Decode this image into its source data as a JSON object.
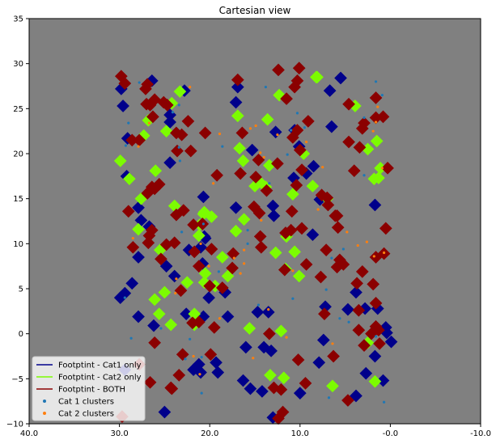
{
  "chart_data": {
    "type": "scatter",
    "title": "Cartesian view",
    "xlabel": "",
    "ylabel": "",
    "xlim": [
      40.0,
      -10.0
    ],
    "ylim": [
      -10,
      35
    ],
    "x_ticks": [
      40.0,
      30.0,
      20.0,
      10.0,
      -0.0,
      -10.0
    ],
    "x_tick_labels": [
      "40.0",
      "30.0",
      "20.0",
      "10.0",
      "-0.0",
      "-10.0"
    ],
    "y_ticks": [
      -10,
      -5,
      0,
      5,
      10,
      15,
      20,
      25,
      30,
      35
    ],
    "y_tick_labels": [
      "−10",
      "−5",
      "0",
      "5",
      "10",
      "15",
      "20",
      "25",
      "30",
      "35"
    ],
    "grid": false,
    "background_color": "#808080",
    "legend_placement": "lower-left",
    "legend": [
      {
        "label": "Footptint - Cat1 only",
        "kind": "line",
        "color": "#00008b"
      },
      {
        "label": "Footptint - Cat2 only",
        "kind": "line",
        "color": "#7cfc00"
      },
      {
        "label": "Footptint - BOTH",
        "kind": "line",
        "color": "#8b0000"
      },
      {
        "label": "Cat 1 clusters",
        "kind": "point",
        "color": "#1f77b4"
      },
      {
        "label": "Cat 2 clusters",
        "kind": "point",
        "color": "#ff7f0e"
      }
    ],
    "series": [
      {
        "name": "Footptint - Cat1 only",
        "color": "#00008b",
        "x": [
          29.2,
          20.8,
          27.9,
          22.6,
          29.8,
          14.0,
          2.8,
          13.0,
          7.9,
          24.4,
          18.3,
          26.7,
          13.5,
          26.4,
          29.4,
          10.1,
          20.7,
          1.7,
          7.4,
          8.6,
          5.5,
          7.8,
          12.7,
          24.4,
          13.2,
          15.5,
          12.9,
          20.7,
          1.4,
          -0.1,
          21.2,
          19.1,
          9.3,
          0.8,
          27.9,
          29.9,
          21.0,
          27.9,
          26.2,
          19.3,
          10.0,
          14.7,
          29.4,
          21.8,
          27.6,
          3.8,
          25.0,
          15.3,
          10.6,
          28.6,
          14.2,
          23.9,
          21.0,
          16.9,
          10.7,
          13.0,
          4.7,
          22.3,
          8.5,
          22.8,
          20.1,
          29.1,
          7.2,
          18.0,
          24.8,
          16.3,
          0.5,
          1.7,
          6.7,
          17.1,
          20.6,
          29.6,
          16.0,
          17.1,
          6.5,
          20.5,
          3.8,
          2.7,
          0.4,
          24.4
        ],
        "y": [
          17.5,
          7.8,
          14.0,
          2.2,
          27.2,
          -1.5,
          2.8,
          -9.3,
          -3.2,
          19.0,
          4.6,
          11.9,
          2.4,
          28.1,
          4.5,
          20.8,
          15.2,
          -2.5,
          -0.7,
          11.0,
          28.4,
          14.9,
          22.4,
          23.5,
          -1.9,
          -6.1,
          13.1,
          1.9,
          2.8,
          -0.9,
          -3.4,
          -4.3,
          17.8,
          -5.2,
          8.5,
          4.0,
          -4.3,
          1.9,
          0.9,
          -3.2,
          -6.6,
          2.4,
          -4.0,
          -4.0,
          12.6,
          -6.9,
          -8.7,
          20.4,
          22.6,
          5.6,
          -6.4,
          6.4,
          9.6,
          27.4,
          17.3,
          14.2,
          2.7,
          9.3,
          18.6,
          27.0,
          4.0,
          21.7,
          3.0,
          1.9,
          7.5,
          -5.2,
          0.7,
          14.3,
          27.0,
          25.7,
          10.8,
          25.3,
          -1.5,
          14.0,
          23.0,
          10.6,
          4.6,
          -4.4,
          0.1,
          24.3
        ]
      },
      {
        "name": "Footptint - Cat2 only",
        "color": "#7cfc00",
        "x": [
          27.9,
          12.1,
          1.8,
          1.3,
          28.9,
          8.1,
          21.7,
          2.5,
          21.1,
          13.4,
          15.0,
          20.6,
          17.1,
          10.8,
          16.7,
          11.5,
          14.5,
          29.9,
          12.3,
          19.4,
          20.7,
          9.6,
          23.3,
          27.6,
          24.8,
          13.8,
          1.1,
          19.8,
          8.2,
          12.7,
          24.2,
          25.0,
          15.6,
          18.6,
          13.6,
          10.1,
          3.9,
          25.5,
          26.8,
          21.7,
          11.8,
          16.9,
          23.9,
          6.4,
          1.5,
          7.0,
          16.3,
          22.5,
          10.6,
          26.0,
          1.7,
          11.6,
          13.3,
          24.3,
          8.6,
          18.0,
          25.6,
          27.3,
          21.2,
          20.6,
          20.5,
          26.1,
          2.5,
          16.2
        ],
        "y": [
          11.6,
          0.3,
          17.2,
          17.3,
          17.2,
          28.5,
          1.0,
          20.5,
          12.1,
          18.7,
          16.4,
          13.5,
          11.4,
          15.5,
          20.6,
          10.8,
          16.9,
          19.2,
          26.5,
          5.3,
          13.3,
          20.0,
          26.9,
          15.0,
          22.5,
          16.3,
          18.4,
          13.0,
          28.5,
          9.0,
          25.6,
          4.6,
          0.6,
          8.5,
          23.8,
          6.4,
          25.3,
          9.3,
          23.7,
          2.2,
          -4.9,
          24.2,
          14.2,
          -5.8,
          21.4,
          15.0,
          19.2,
          5.7,
          9.1,
          18.1,
          -5.3,
          7.2,
          -4.6,
          1.0,
          16.4,
          6.4,
          2.2,
          22.0,
          10.9,
          5.7,
          6.7,
          3.8,
          -1.0,
          12.7
        ]
      },
      {
        "name": "Footptint - BOTH",
        "color": "#8b0000",
        "x": [
          26.1,
          2.9,
          21.7,
          28.6,
          4.6,
          10.4,
          26.1,
          4.0,
          22.4,
          6.3,
          13.7,
          23.1,
          23.4,
          9.8,
          26.4,
          16.9,
          10.8,
          15.1,
          11.5,
          28.5,
          1.6,
          21.8,
          22.9,
          10.9,
          9.3,
          25.4,
          5.9,
          12.4,
          14.5,
          23.6,
          17.5,
          0.5,
          1.6,
          6.9,
          25.6,
          7.0,
          26.1,
          26.3,
          4.7,
          27.8,
          24.7,
          1.9,
          20.8,
          19.5,
          9.8,
          7.3,
          19.2,
          14.9,
          11.0,
          1.6,
          12.9,
          5.9,
          5.6,
          12.4,
          26.4,
          12.1,
          14.3,
          0.8,
          14.4,
          20.5,
          11.9,
          26.6,
          4.6,
          7.7,
          13.4,
          7.6,
          22.1,
          0.3,
          29.7,
          23.2,
          26.9,
          23.9,
          10.0,
          27.0,
          3.1,
          1.2,
          7.1,
          29.0,
          29.4,
          10.2,
          9.1,
          21.2,
          2.1,
          17.4,
          26.6,
          5.8,
          2.9,
          11.7,
          1.6,
          26.9,
          19.9,
          24.8,
          10.3,
          21.2,
          12.5,
          9.4,
          1.6,
          3.1,
          23.0,
          10.6,
          21.9,
          11.6,
          23.7,
          27.8,
          14.6,
          24.3,
          25.1,
          19.8,
          3.5,
          10.3,
          3.7,
          6.1,
          0.7,
          26.7,
          26.8,
          18.6,
          29.8,
          3.4,
          1.3,
          24.2,
          16.4,
          5.2,
          23.7,
          16.6,
          10.1,
          3.5,
          27.1,
          20.0
        ],
        "y": [
          26.0,
          -1.3,
          9.1,
          21.5,
          21.3,
          16.5,
          -1.0,
          18.1,
          23.6,
          -2.5,
          15.9,
          22.1,
          -4.6,
          18.2,
          16.3,
          28.2,
          21.8,
          14.1,
          26.1,
          9.6,
          3.4,
          12.1,
          13.7,
          13.6,
          7.7,
          8.3,
          7.4,
          -9.4,
          13.4,
          20.3,
          7.3,
          11.7,
          0.8,
          14.3,
          16.6,
          15.1,
          16.1,
          24.1,
          -7.4,
          21.5,
          25.4,
          5.5,
          12.2,
          0.7,
          11.7,
          2.2,
          17.6,
          17.4,
          11.5,
          8.5,
          -6.0,
          13.1,
          8.2,
          29.3,
          11.5,
          -6.2,
          9.6,
          24.1,
          10.8,
          22.3,
          -8.7,
          25.4,
          25.5,
          6.3,
          -0.0,
          15.4,
          20.3,
          18.4,
          -9.2,
          4.8,
          27.7,
          10.1,
          20.4,
          25.5,
          6.9,
          -1.1,
          9.3,
          13.6,
          27.8,
          -2.9,
          23.6,
          1.3,
          -0.0,
          8.9,
          -5.4,
          11.8,
          23.4,
          7.1,
          24.0,
          15.6,
          -2.3,
          9.9,
          28.1,
          7.5,
          18.9,
          -5.5,
          26.2,
          22.8,
          -2.3,
          27.4,
          1.2,
          11.2,
          13.2,
          -3.4,
          19.3,
          -6.0,
          25.7,
          9.4,
          0.4,
          22.6,
          5.6,
          13.1,
          8.9,
          10.9,
          10.1,
          5.1,
          28.6,
          20.7,
          0.4,
          -6.1,
          22.3,
          7.7,
          22.3,
          17.8,
          29.5,
          2.6,
          27.2,
          5.3
        ]
      }
    ],
    "cluster_series": [
      {
        "name": "Cat 1 clusters",
        "color": "#1f77b4",
        "x": [
          13.8,
          1.6,
          5.6,
          5.2,
          29.3,
          10.3,
          29.4,
          24.1,
          11.4,
          6.5,
          18.6,
          22.7,
          29.0,
          19.0,
          22.2,
          23.4,
          15.8,
          6.8,
          11.0,
          2.9,
          27.8,
          1.6,
          0.7,
          23.1,
          20.9,
          23.3,
          4.6,
          0.9,
          7.1,
          10.8,
          2.9,
          20.9,
          25.4,
          28.7,
          13.4,
          15.8,
          20.7,
          9.5,
          14.6,
          23.4
        ],
        "y": [
          27.4,
          28.0,
          1.7,
          9.4,
          20.9,
          24.5,
          4.0,
          24.6,
          19.9,
          8.4,
          20.8,
          -2.8,
          23.4,
          6.9,
          -0.6,
          20.7,
          10.0,
          -7.1,
          22.6,
          17.6,
          27.9,
          -0.3,
          -7.6,
          11.3,
          -2.6,
          19.2,
          1.3,
          26.5,
          4.9,
          3.9,
          24.0,
          -6.6,
          0.6,
          -0.5,
          16.7,
          11.5,
          12.2,
          22.9,
          3.2,
          25.4
        ]
      },
      {
        "name": "Cat 2 clusters",
        "color": "#ff7f0e",
        "x": [
          12.5,
          15.5,
          16.2,
          3.6,
          11.5,
          10.8,
          1.6,
          4.8,
          21.1,
          28.5,
          15.2,
          14.3,
          8.0,
          16.6,
          26.7,
          27.9,
          6.4,
          14.0,
          17.3,
          2.6,
          23.8,
          13.5,
          0.7,
          22.2,
          19.6,
          21.8,
          18.9,
          18.9,
          7.5,
          20.1,
          9.3,
          1.4,
          23.7,
          1.9,
          16.2,
          1.8,
          14.4,
          21.0,
          0.9,
          14.9
        ],
        "y": [
          22.1,
          22.8,
          9.3,
          9.8,
          -0.4,
          7.0,
          23.5,
          11.3,
          -4.5,
          10.6,
          -2.7,
          12.6,
          13.8,
          6.7,
          23.4,
          20.8,
          -1.1,
          19.6,
          8.4,
          10.2,
          4.5,
          2.7,
          9.0,
          27.4,
          16.7,
          -2.5,
          1.7,
          22.2,
          18.5,
          7.5,
          21.3,
          25.2,
          6.1,
          22.5,
          7.8,
          8.6,
          20.1,
          10.0,
          18.4,
          23.1
        ]
      }
    ]
  }
}
